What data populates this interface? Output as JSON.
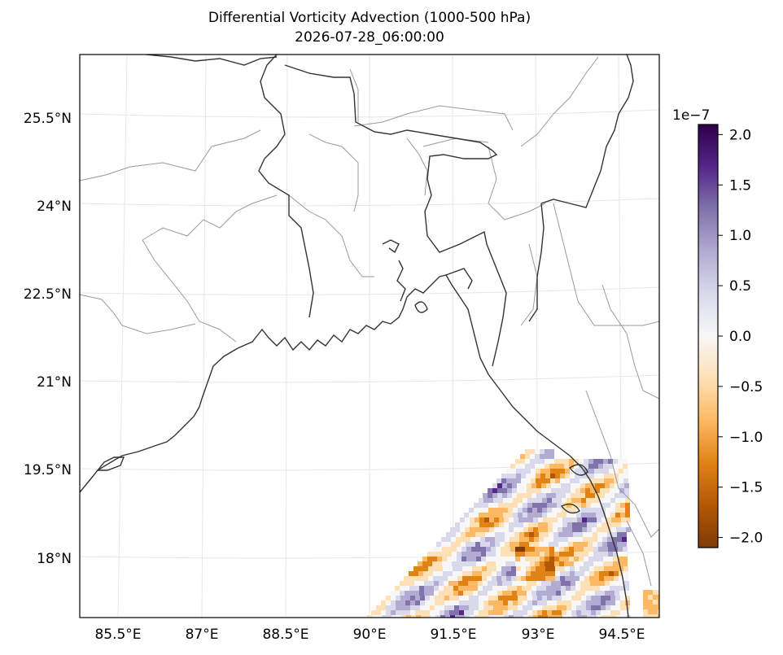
{
  "title_line1": "Differential Vorticity Advection (1000-500 hPa)",
  "title_line2": "2026-07-28_06:00:00",
  "map": {
    "lon_labels": [
      "85.5°E",
      "87°E",
      "88.5°E",
      "90°E",
      "91.5°E",
      "93°E",
      "94.5°E"
    ],
    "lat_labels": [
      "25.5°N",
      "24°N",
      "22.5°N",
      "21°N",
      "19.5°N",
      "18°N"
    ]
  },
  "colorbar": {
    "colormap": "PuOr",
    "scale_label": "1e−7",
    "ticks": [
      "2.0",
      "1.5",
      "1.0",
      "0.5",
      "0.0",
      "−0.5",
      "−1.0",
      "−1.5",
      "−2.0"
    ],
    "range": [
      -2.1,
      2.1
    ]
  },
  "colors": {
    "coastline": "#333333",
    "borders": "#9a9a9a",
    "gridlines": "#e6e6e6",
    "purple_extreme": "#2d004b",
    "orange_extreme": "#7f3b08"
  }
}
